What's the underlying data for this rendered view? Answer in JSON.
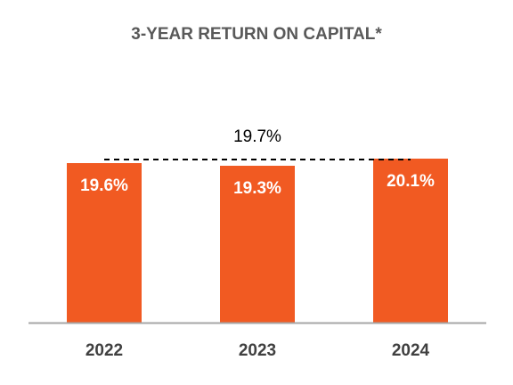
{
  "chart_data": {
    "type": "bar",
    "title": "3-YEAR RETURN ON CAPITAL*",
    "categories": [
      "2022",
      "2023",
      "2024"
    ],
    "values": [
      19.6,
      19.3,
      20.1
    ],
    "value_labels": [
      "19.6%",
      "19.3%",
      "20.1%"
    ],
    "reference_line": {
      "value": 19.7,
      "label": "19.7%",
      "style": "dashed"
    },
    "xlabel": "",
    "ylabel": "",
    "ylim": [
      0,
      20.1
    ],
    "grid": false,
    "legend": "none",
    "colors": {
      "bar": "#F15A22",
      "axis": "#A6A6A6",
      "reference": "#000000",
      "bar_label": "#FFFFFF",
      "tick_label": "#404040",
      "title": "#595959"
    }
  }
}
